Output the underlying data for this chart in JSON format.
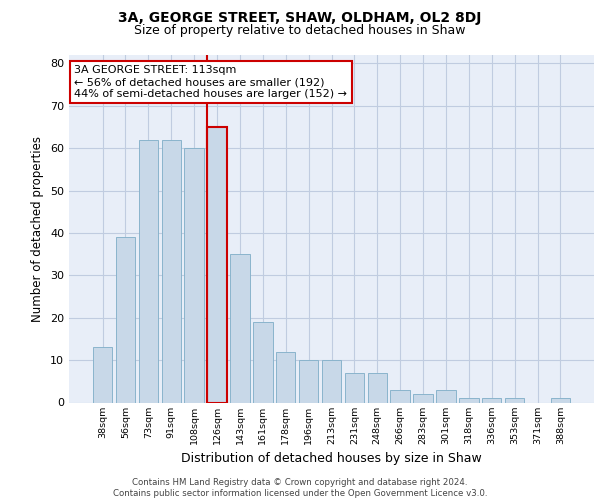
{
  "title": "3A, GEORGE STREET, SHAW, OLDHAM, OL2 8DJ",
  "subtitle": "Size of property relative to detached houses in Shaw",
  "xlabel": "Distribution of detached houses by size in Shaw",
  "ylabel": "Number of detached properties",
  "categories": [
    "38sqm",
    "56sqm",
    "73sqm",
    "91sqm",
    "108sqm",
    "126sqm",
    "143sqm",
    "161sqm",
    "178sqm",
    "196sqm",
    "213sqm",
    "231sqm",
    "248sqm",
    "266sqm",
    "283sqm",
    "301sqm",
    "318sqm",
    "336sqm",
    "353sqm",
    "371sqm",
    "388sqm"
  ],
  "values": [
    13,
    39,
    62,
    62,
    60,
    65,
    35,
    19,
    12,
    10,
    10,
    7,
    7,
    3,
    2,
    3,
    1,
    1,
    1,
    0,
    1
  ],
  "bar_color": "#c8d8e8",
  "bar_edge_color": "#8ab4cc",
  "highlight_bar_index": 5,
  "highlight_bar_edge_color": "#cc0000",
  "vline_color": "#cc0000",
  "annotation_box_text": "3A GEORGE STREET: 113sqm\n← 56% of detached houses are smaller (192)\n44% of semi-detached houses are larger (152) →",
  "annotation_box_color": "#cc0000",
  "ylim": [
    0,
    82
  ],
  "yticks": [
    0,
    10,
    20,
    30,
    40,
    50,
    60,
    70,
    80
  ],
  "grid_color": "#c0cce0",
  "bg_color": "#e8eef8",
  "title_fontsize": 10,
  "subtitle_fontsize": 9,
  "footer": "Contains HM Land Registry data © Crown copyright and database right 2024.\nContains public sector information licensed under the Open Government Licence v3.0."
}
